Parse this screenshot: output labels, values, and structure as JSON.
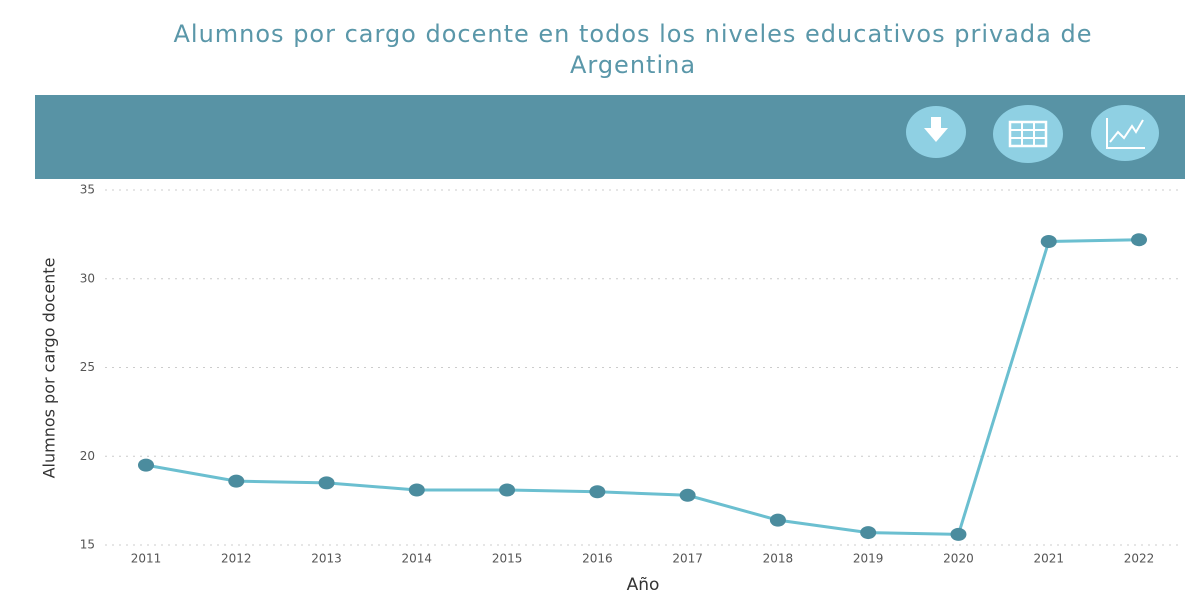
{
  "chart_data": {
    "type": "line",
    "title": "Alumnos por cargo docente en todos los niveles educativos privada  de Argentina",
    "x_label": "Año",
    "y_label": "Alumnos por cargo docente",
    "categories": [
      "2011",
      "2012",
      "2013",
      "2014",
      "2015",
      "2016",
      "2017",
      "2018",
      "2019",
      "2020",
      "2021",
      "2022"
    ],
    "series": [
      {
        "name": "Alumnos por cargo docente",
        "color": "#6bbfd0",
        "marker_color": "#4b8c9e",
        "values": [
          19.5,
          18.6,
          18.5,
          18.1,
          18.1,
          18.0,
          17.8,
          16.4,
          15.7,
          15.6,
          32.1,
          32.2
        ]
      }
    ],
    "ylim": [
      15,
      35
    ],
    "yticks": [
      15,
      20,
      25,
      30,
      35
    ],
    "grid": true
  }
}
